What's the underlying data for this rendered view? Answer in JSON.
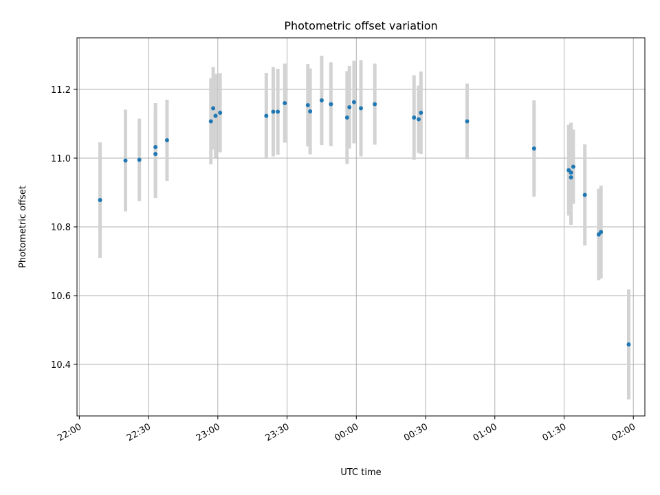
{
  "chart_data": {
    "type": "scatter",
    "title": "Photometric offset variation",
    "xlabel": "UTC time",
    "ylabel": "Photometric offset",
    "x_ticks": [
      "22:00",
      "22:30",
      "23:00",
      "23:30",
      "00:00",
      "00:30",
      "01:00",
      "01:30",
      "02:00"
    ],
    "y_ticks": [
      "10.4",
      "10.6",
      "10.8",
      "11.0",
      "11.2"
    ],
    "y_tick_values": [
      10.4,
      10.6,
      10.8,
      11.0,
      11.2
    ],
    "xlim": [
      "21:59",
      "02:05"
    ],
    "ylim": [
      10.25,
      11.35
    ],
    "grid": true,
    "colors": {
      "point": "#1f77b4",
      "errorbar": "#d3d3d3",
      "grid": "#b0b0b0"
    },
    "points": [
      {
        "t": "22:09",
        "y": 10.878,
        "err": 0.168
      },
      {
        "t": "22:20",
        "y": 10.993,
        "err": 0.148
      },
      {
        "t": "22:26",
        "y": 10.995,
        "err": 0.12
      },
      {
        "t": "22:33",
        "y": 11.012,
        "err": 0.128
      },
      {
        "t": "22:33",
        "y": 11.032,
        "err": 0.128
      },
      {
        "t": "22:38",
        "y": 11.052,
        "err": 0.118
      },
      {
        "t": "22:57",
        "y": 11.107,
        "err": 0.125
      },
      {
        "t": "22:58",
        "y": 11.145,
        "err": 0.12
      },
      {
        "t": "22:59",
        "y": 11.123,
        "err": 0.122
      },
      {
        "t": "23:01",
        "y": 11.132,
        "err": 0.115
      },
      {
        "t": "23:21",
        "y": 11.123,
        "err": 0.125
      },
      {
        "t": "23:24",
        "y": 11.135,
        "err": 0.13
      },
      {
        "t": "23:26",
        "y": 11.135,
        "err": 0.125
      },
      {
        "t": "23:29",
        "y": 11.16,
        "err": 0.115
      },
      {
        "t": "23:39",
        "y": 11.154,
        "err": 0.12
      },
      {
        "t": "23:40",
        "y": 11.136,
        "err": 0.125
      },
      {
        "t": "23:45",
        "y": 11.168,
        "err": 0.13
      },
      {
        "t": "23:49",
        "y": 11.157,
        "err": 0.122
      },
      {
        "t": "23:56",
        "y": 11.118,
        "err": 0.135
      },
      {
        "t": "23:57",
        "y": 11.148,
        "err": 0.12
      },
      {
        "t": "23:59",
        "y": 11.163,
        "err": 0.12
      },
      {
        "t": "00:02",
        "y": 11.145,
        "err": 0.14
      },
      {
        "t": "00:08",
        "y": 11.157,
        "err": 0.118
      },
      {
        "t": "00:25",
        "y": 11.118,
        "err": 0.123
      },
      {
        "t": "00:27",
        "y": 11.113,
        "err": 0.098
      },
      {
        "t": "00:28",
        "y": 11.132,
        "err": 0.12
      },
      {
        "t": "00:48",
        "y": 11.107,
        "err": 0.11
      },
      {
        "t": "01:17",
        "y": 11.028,
        "err": 0.14
      },
      {
        "t": "01:32",
        "y": 10.965,
        "err": 0.132
      },
      {
        "t": "01:33",
        "y": 10.944,
        "err": 0.138
      },
      {
        "t": "01:33",
        "y": 10.958,
        "err": 0.145
      },
      {
        "t": "01:34",
        "y": 10.975,
        "err": 0.108
      },
      {
        "t": "01:39",
        "y": 10.893,
        "err": 0.147
      },
      {
        "t": "01:45",
        "y": 10.778,
        "err": 0.133
      },
      {
        "t": "01:46",
        "y": 10.785,
        "err": 0.135
      },
      {
        "t": "01:58",
        "y": 10.458,
        "err": 0.16
      }
    ]
  }
}
